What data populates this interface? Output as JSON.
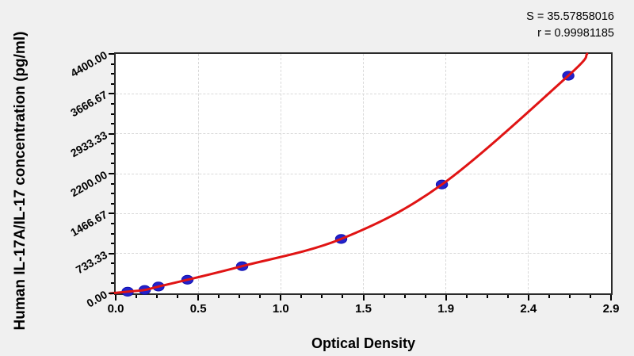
{
  "chart_data": {
    "type": "scatter",
    "title": "",
    "xlabel": "Optical Density",
    "ylabel": "Human IL-17A/IL-17 concentration (pg/ml)",
    "stats": {
      "s": "S = 35.57858016",
      "r": "r = 0.99981185"
    },
    "x_tick_labels": [
      "0.0",
      "0.5",
      "1.0",
      "1.5",
      "1.9",
      "2.4",
      "2.9"
    ],
    "y_tick_labels": [
      "0.00",
      "733.33",
      "1466.67",
      "2200.00",
      "2933.33",
      "3666.67",
      "4400.00"
    ],
    "xlim": [
      0,
      2.9
    ],
    "ylim": [
      0,
      4400
    ],
    "minor_ticks_per_major": 4,
    "grid": "dashed",
    "legend": "none",
    "points": [
      {
        "od": 0.07,
        "conc": 31.25
      },
      {
        "od": 0.17,
        "conc": 62.5
      },
      {
        "od": 0.25,
        "conc": 125
      },
      {
        "od": 0.42,
        "conc": 250
      },
      {
        "od": 0.74,
        "conc": 500
      },
      {
        "od": 1.32,
        "conc": 1000
      },
      {
        "od": 1.91,
        "conc": 2000
      },
      {
        "od": 2.65,
        "conc": 4000
      }
    ],
    "curve": {
      "start_od": -0.03,
      "start_conc": 0,
      "end_od": 2.76,
      "end_conc": 4400
    },
    "colors": {
      "curve": "#e01414",
      "point_fill": "#2222cc",
      "point_stroke": "#1010b0",
      "background": "#f0f0f0",
      "plot_background": "#ffffff",
      "border": "#2b2b2b",
      "grid": "#d9d9d9",
      "text": "#000000"
    }
  }
}
